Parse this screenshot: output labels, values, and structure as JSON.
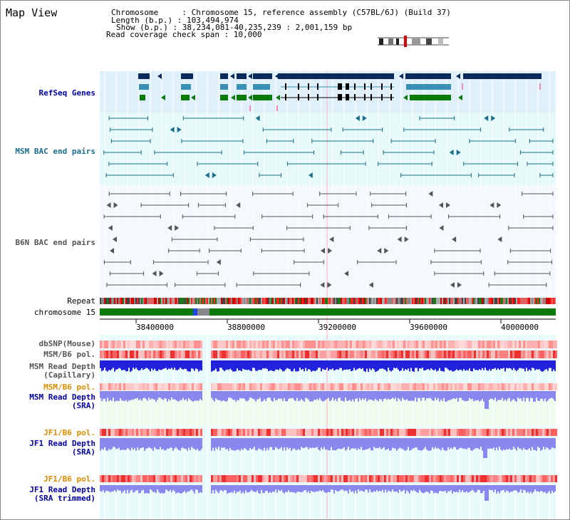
{
  "app": {
    "title": "Map View"
  },
  "header": {
    "chromosome": "Chromosome     : Chromosome 15, reference assembly (C57BL/6J) (Build 37)",
    "length": "Length (b.p.) : 103,494,974",
    "show": "Show (b.p.) : 38,234,081-40,235,239 : 2,001,159 bp",
    "span": "Read coverage check span : 10,000"
  },
  "tracks": {
    "refseq": "RefSeq Genes",
    "msm_bac": "MSM BAC end pairs",
    "b6n_bac": "B6N BAC end pairs",
    "repeat": "Repeat",
    "chromosome": "chromosome 15",
    "dbsnp": "dbSNP(Mouse)",
    "msm_b6_pol": "MSM/B6 pol.",
    "msm_depth_cap_1": "MSM Read Depth",
    "msm_depth_cap_2": "(Capillary)",
    "msm_b6_pol_2": "MSM/B6 pol.",
    "msm_depth_sra_1": "MSM Read Depth",
    "msm_depth_sra_2": "(SRA)",
    "jf1_b6_pol": "JF1/B6 pol.",
    "jf1_depth_sra_1": "JF1 Read Depth",
    "jf1_depth_sra_2": "(SRA)",
    "jf1_b6_pol_2": "JF1/B6 pol.",
    "jf1_depth_trim_1": "JF1 Read Depth",
    "jf1_depth_trim_2": "(SRA trimmed)"
  },
  "axis": {
    "ticks": [
      "38400000",
      "38800000",
      "39200000",
      "39600000",
      "40000000"
    ]
  },
  "colors": {
    "gene_dark": "#0a2a5c",
    "gene_teal": "#3a8fb5",
    "gene_green": "#0a7a0a",
    "msm_bac": "#1a6e8e",
    "b6n_bac": "#555555",
    "chromosome": "#0a7a0a",
    "depth_blue": "#2222dd",
    "depth_light": "#8888ee",
    "label_blue": "#0000aa",
    "label_orange": "#e08a00",
    "label_msm": "#1a6e8e"
  }
}
